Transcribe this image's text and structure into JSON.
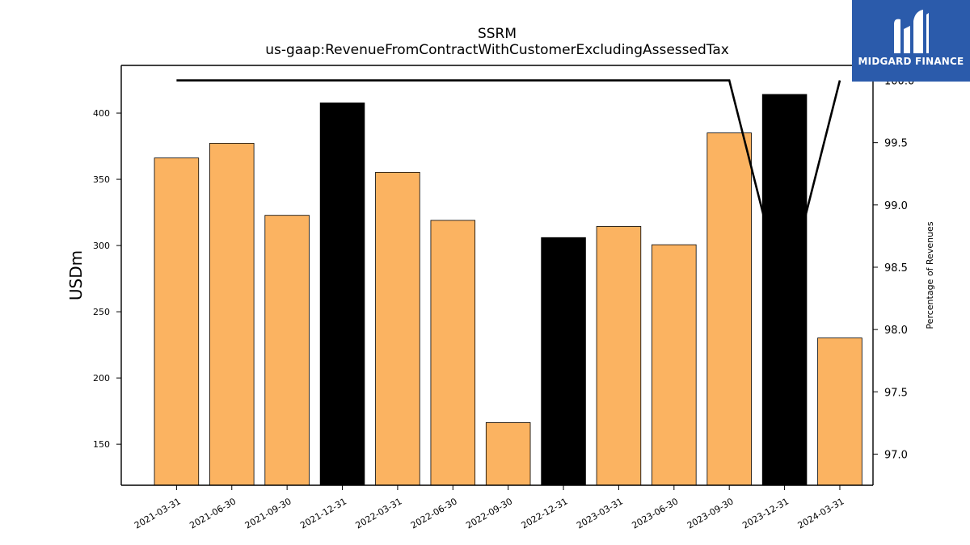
{
  "chart_data": {
    "type": "bar",
    "title": "SSRM",
    "subtitle": "us-gaap:RevenueFromContractWithCustomerExcludingAssessedTax",
    "ylabel": "USDm",
    "y2label": "Percentage of Revenues",
    "categories": [
      "2021-03-31",
      "2021-06-30",
      "2021-09-30",
      "2021-12-31",
      "2022-03-31",
      "2022-06-30",
      "2022-09-30",
      "2022-12-31",
      "2023-03-31",
      "2023-06-30",
      "2023-09-30",
      "2023-12-31",
      "2024-03-31"
    ],
    "values": [
      366.1,
      377.2,
      322.8,
      407.7,
      355.3,
      319.0,
      166.3,
      306.0,
      314.4,
      300.6,
      385.0,
      414.1,
      230.2
    ],
    "bar_colors": [
      "#fbb361",
      "#fbb361",
      "#fbb361",
      "#000000",
      "#fbb361",
      "#fbb361",
      "#fbb361",
      "#000000",
      "#fbb361",
      "#fbb361",
      "#fbb361",
      "#000000",
      "#fbb361"
    ],
    "ylim": [
      119,
      436
    ],
    "yticks": [
      150,
      200,
      250,
      300,
      350,
      400
    ],
    "y2lim": [
      96.75,
      100.12
    ],
    "y2ticks": [
      "97.0",
      "97.5",
      "98.0",
      "98.5",
      "99.0",
      "99.5",
      "100.0"
    ],
    "line_series": {
      "values": [
        100.0,
        100.0,
        100.0,
        100.0,
        100.0,
        100.0,
        100.0,
        100.0,
        100.0,
        100.0,
        100.0,
        98.25,
        100.0
      ],
      "color": "#000000"
    },
    "grid": false
  },
  "logo": {
    "text": "MIDGARD FINANCE",
    "bg_color": "#2b5bab"
  }
}
